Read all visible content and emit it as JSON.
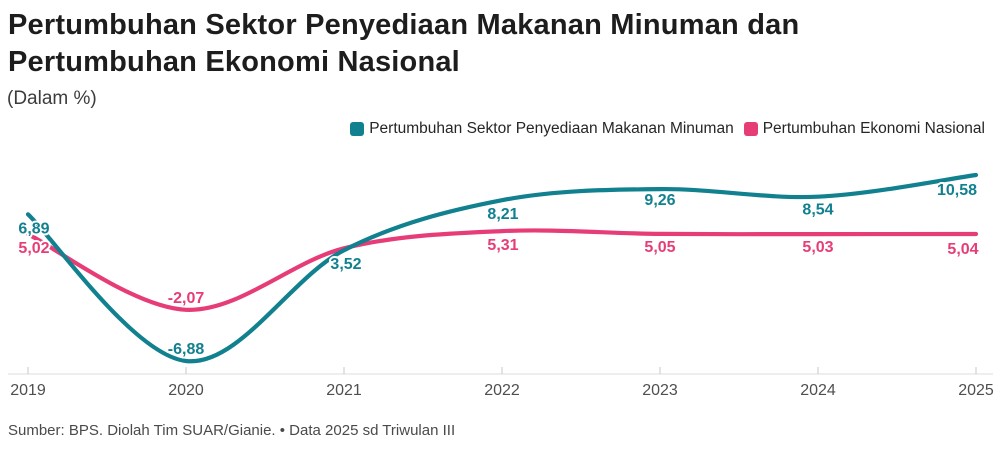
{
  "header": {
    "title": "Pertumbuhan Sektor Penyediaan Makanan Minuman dan Pertumbuhan Ekonomi Nasional",
    "subtitle": "(Dalam %)"
  },
  "legend": [
    {
      "label": "Pertumbuhan Sektor Penyediaan Makanan Minuman",
      "color": "#11808f"
    },
    {
      "label": "Pertumbuhan Ekonomi Nasional",
      "color": "#e63d78"
    }
  ],
  "chart_data": {
    "type": "line",
    "title": "Pertumbuhan Sektor Penyediaan Makanan Minuman dan Pertumbuhan Ekonomi Nasional",
    "subtitle": "(Dalam %)",
    "x": [
      2019,
      2020,
      2021,
      2022,
      2023,
      2024,
      2025
    ],
    "x_tick_labels": [
      "2019",
      "2020",
      "2021",
      "2022",
      "2023",
      "2024",
      "2025"
    ],
    "xlabel": "",
    "ylabel": "Dalam %",
    "ylim": [
      -8.2,
      13.0
    ],
    "grid": false,
    "legend_position": "top-right",
    "series": [
      {
        "name": "Pertumbuhan Sektor Penyediaan Makanan Minuman",
        "color": "#11808f",
        "values": [
          6.89,
          -6.88,
          3.52,
          8.21,
          9.26,
          8.54,
          10.58
        ],
        "labels": [
          {
            "text": "6,89",
            "dx": 6,
            "dy": 19
          },
          {
            "text": "-6,88",
            "dx": 0,
            "dy": -7
          },
          {
            "text": "3,52",
            "dx": 2,
            "dy": 19
          },
          {
            "text": "8,21",
            "dx": 1,
            "dy": 19
          },
          {
            "text": "9,26",
            "dx": 0,
            "dy": 16
          },
          {
            "text": "8,54",
            "dx": 0,
            "dy": 18
          },
          {
            "text": "10,58",
            "dx": -19,
            "dy": 20
          }
        ]
      },
      {
        "name": "Pertumbuhan Ekonomi Nasional",
        "color": "#e63d78",
        "values": [
          5.02,
          -2.07,
          3.7,
          5.31,
          5.05,
          5.03,
          5.04
        ],
        "labels": [
          {
            "text": "5,02",
            "dx": 6,
            "dy": 19
          },
          {
            "text": "-2,07",
            "dx": 0,
            "dy": -7
          },
          null,
          {
            "text": "5,31",
            "dx": 1,
            "dy": 19
          },
          {
            "text": "5,05",
            "dx": 0,
            "dy": 18
          },
          {
            "text": "5,03",
            "dx": 0,
            "dy": 18
          },
          {
            "text": "5,04",
            "dx": -13,
            "dy": 20
          }
        ]
      }
    ]
  },
  "colors": {
    "axis_line": "#dcdcdc",
    "axis_tick": "#c9c9c9",
    "year_label": "#4f4f4f"
  },
  "footer": {
    "source": "Sumber: BPS. Diolah Tim SUAR/Gianie. • Data 2025 sd Triwulan III"
  }
}
